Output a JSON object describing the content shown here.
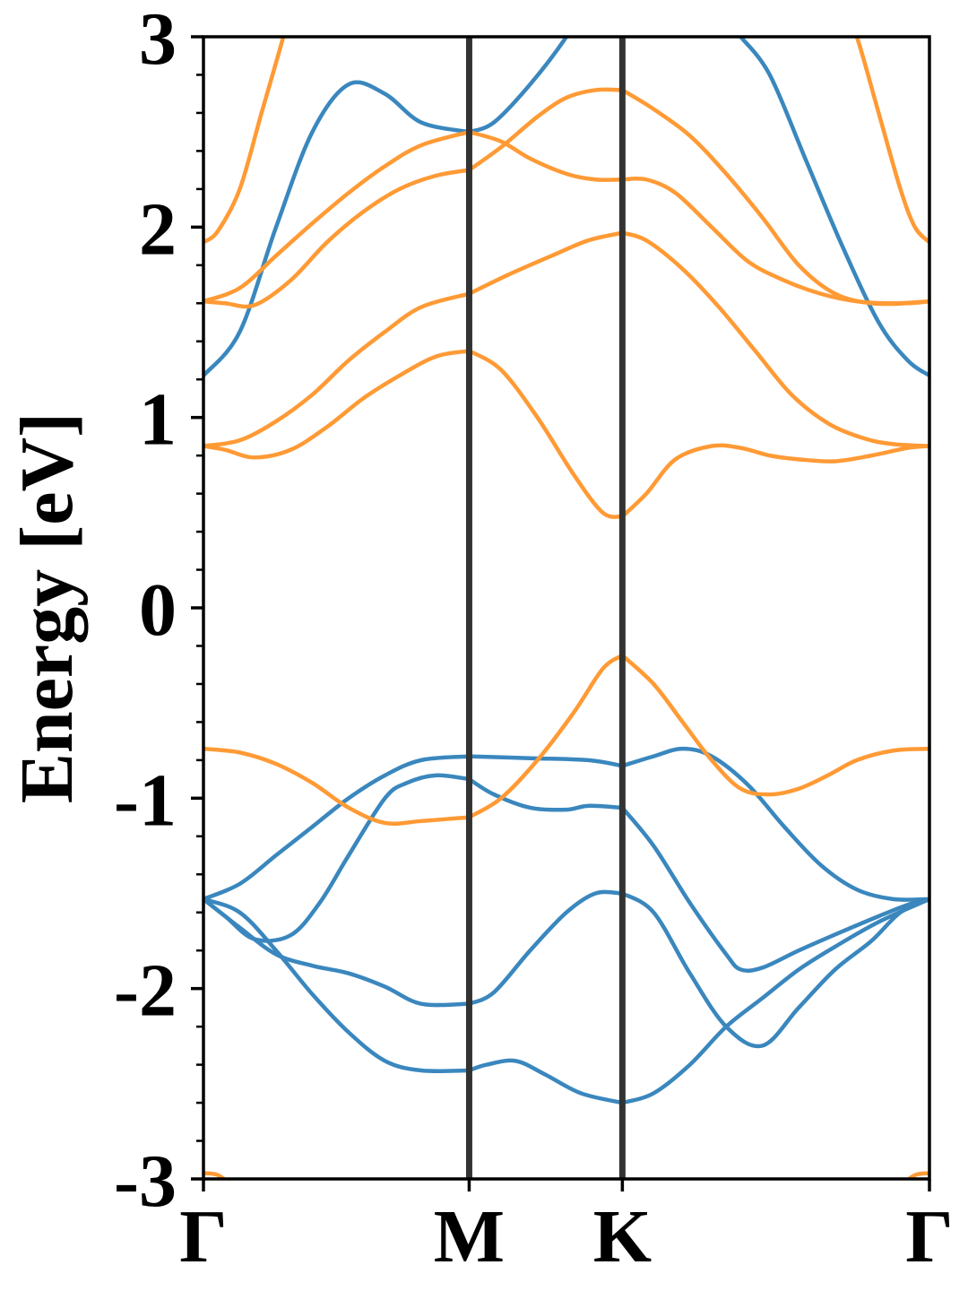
{
  "chart_data": {
    "type": "line",
    "title": "",
    "xlabel": "",
    "ylabel": "Energy [eV]",
    "ylim": [
      -3,
      3
    ],
    "xlim": [
      0,
      1
    ],
    "yticks": [
      {
        "value": 3,
        "label": "3"
      },
      {
        "value": 2,
        "label": "2"
      },
      {
        "value": 1,
        "label": "1"
      },
      {
        "value": 0,
        "label": "0"
      },
      {
        "value": -1,
        "label": "-1"
      },
      {
        "value": -2,
        "label": "-2"
      },
      {
        "value": -3,
        "label": "-3"
      }
    ],
    "yminor_step": 0.2,
    "kpoints": [
      {
        "label": "Γ",
        "x": 0.0
      },
      {
        "label": "M",
        "x": 0.366
      },
      {
        "label": "K",
        "x": 0.577
      },
      {
        "label": "Γ",
        "x": 1.0
      }
    ],
    "high_symmetry_lines": [
      0.366,
      0.577
    ],
    "grid": false,
    "legend": "none",
    "colors": {
      "series_a": "#3a87be",
      "series_b": "#ff9a35",
      "vline": "#333333",
      "axis": "#000000"
    },
    "series": [
      {
        "color": "#3a87be",
        "x": [
          0,
          0.03,
          0.07,
          0.12,
          0.16,
          0.2,
          0.25,
          0.28,
          0.32,
          0.366
        ],
        "y": [
          -1.53,
          -1.62,
          -1.74,
          -1.72,
          -1.55,
          -1.3,
          -1.0,
          -0.92,
          -0.88,
          -0.9
        ]
      },
      {
        "color": "#3a87be",
        "x": [
          0.366,
          0.4,
          0.45,
          0.5,
          0.53,
          0.577
        ],
        "y": [
          -0.9,
          -0.98,
          -1.05,
          -1.06,
          -1.04,
          -1.05
        ]
      },
      {
        "color": "#3a87be",
        "x": [
          0.577,
          0.62,
          0.67,
          0.72,
          0.74,
          0.77,
          0.82,
          0.88,
          0.93,
          0.97,
          1.0
        ],
        "y": [
          -1.05,
          -1.25,
          -1.55,
          -1.82,
          -1.9,
          -1.89,
          -1.8,
          -1.7,
          -1.62,
          -1.56,
          -1.53
        ]
      },
      {
        "color": "#3a87be",
        "x": [
          0,
          0.05,
          0.1,
          0.15,
          0.2,
          0.25,
          0.3,
          0.366
        ],
        "y": [
          -1.53,
          -1.68,
          -1.82,
          -1.88,
          -1.92,
          -1.99,
          -2.08,
          -2.08
        ]
      },
      {
        "color": "#3a87be",
        "x": [
          0.366,
          0.4,
          0.45,
          0.5,
          0.54,
          0.577
        ],
        "y": [
          -2.08,
          -2.02,
          -1.8,
          -1.6,
          -1.5,
          -1.5
        ]
      },
      {
        "color": "#3a87be",
        "x": [
          0.577,
          0.62,
          0.67,
          0.72,
          0.77,
          0.82,
          0.87,
          0.92,
          0.96,
          1.0
        ],
        "y": [
          -1.5,
          -1.6,
          -1.92,
          -2.2,
          -2.3,
          -2.1,
          -1.9,
          -1.75,
          -1.6,
          -1.53
        ]
      },
      {
        "color": "#3a87be",
        "x": [
          0,
          0.05,
          0.1,
          0.15,
          0.2,
          0.25,
          0.3,
          0.366
        ],
        "y": [
          -1.53,
          -1.6,
          -1.8,
          -2.03,
          -2.23,
          -2.38,
          -2.43,
          -2.43
        ]
      },
      {
        "color": "#3a87be",
        "x": [
          0.366,
          0.39,
          0.43,
          0.47,
          0.52,
          0.577
        ],
        "y": [
          -2.43,
          -2.4,
          -2.38,
          -2.45,
          -2.55,
          -2.6
        ]
      },
      {
        "color": "#3a87be",
        "x": [
          0.577,
          0.62,
          0.67,
          0.72,
          0.77,
          0.82,
          0.87,
          0.93,
          1.0
        ],
        "y": [
          -2.6,
          -2.55,
          -2.4,
          -2.2,
          -2.05,
          -1.9,
          -1.78,
          -1.65,
          -1.53
        ]
      },
      {
        "color": "#3a87be",
        "x": [
          0,
          0.05,
          0.1,
          0.15,
          0.2,
          0.25,
          0.3,
          0.366
        ],
        "y": [
          -1.53,
          -1.45,
          -1.3,
          -1.15,
          -1.0,
          -0.88,
          -0.8,
          -0.78
        ]
      },
      {
        "color": "#3a87be",
        "x": [
          0.366,
          0.45,
          0.53,
          0.577
        ],
        "y": [
          -0.78,
          -0.79,
          -0.8,
          -0.83
        ]
      },
      {
        "color": "#3a87be",
        "x": [
          0.577,
          0.62,
          0.66,
          0.7,
          0.75,
          0.8,
          0.85,
          0.9,
          0.95,
          1.0
        ],
        "y": [
          -0.83,
          -0.78,
          -0.74,
          -0.78,
          -0.93,
          -1.15,
          -1.35,
          -1.48,
          -1.53,
          -1.53
        ]
      },
      {
        "color": "#3a87be",
        "x": [
          0,
          0.05,
          0.1,
          0.15,
          0.2,
          0.25,
          0.3,
          0.366
        ],
        "y": [
          1.22,
          1.45,
          2.0,
          2.5,
          2.75,
          2.7,
          2.55,
          2.5
        ]
      },
      {
        "color": "#3a87be",
        "x": [
          0.366,
          0.4,
          0.45,
          0.5,
          0.53
        ],
        "y": [
          2.5,
          2.55,
          2.75,
          3.0,
          3.2
        ]
      },
      {
        "color": "#3a87be",
        "x": [
          0.74,
          0.78,
          0.83,
          0.88,
          0.93,
          0.97,
          1.0
        ],
        "y": [
          3.0,
          2.8,
          2.35,
          1.9,
          1.5,
          1.3,
          1.22
        ]
      },
      {
        "color": "#ff9a35",
        "x": [
          0,
          0.05,
          0.1,
          0.15,
          0.2,
          0.25,
          0.3,
          0.366
        ],
        "y": [
          -0.74,
          -0.76,
          -0.82,
          -0.92,
          -1.05,
          -1.13,
          -1.12,
          -1.1
        ]
      },
      {
        "color": "#ff9a35",
        "x": [
          0.366,
          0.41,
          0.46,
          0.51,
          0.55,
          0.577
        ],
        "y": [
          -1.1,
          -1.0,
          -0.8,
          -0.55,
          -0.32,
          -0.25
        ]
      },
      {
        "color": "#ff9a35",
        "x": [
          0.577,
          0.62,
          0.66,
          0.7,
          0.74,
          0.78,
          0.82,
          0.86,
          0.9,
          0.95,
          1.0
        ],
        "y": [
          -0.25,
          -0.4,
          -0.6,
          -0.8,
          -0.95,
          -0.98,
          -0.95,
          -0.88,
          -0.8,
          -0.75,
          -0.74
        ]
      },
      {
        "color": "#ff9a35",
        "x": [
          0,
          0.03,
          0.07,
          0.12,
          0.17,
          0.22,
          0.27,
          0.32,
          0.366
        ],
        "y": [
          0.85,
          0.83,
          0.79,
          0.83,
          0.95,
          1.1,
          1.22,
          1.32,
          1.35
        ]
      },
      {
        "color": "#ff9a35",
        "x": [
          0.366,
          0.41,
          0.46,
          0.51,
          0.55,
          0.577
        ],
        "y": [
          1.35,
          1.25,
          1.0,
          0.7,
          0.5,
          0.48
        ]
      },
      {
        "color": "#ff9a35",
        "x": [
          0.577,
          0.61,
          0.65,
          0.7,
          0.74,
          0.78,
          0.82,
          0.87,
          0.92,
          0.97,
          1.0
        ],
        "y": [
          0.48,
          0.6,
          0.78,
          0.85,
          0.84,
          0.8,
          0.78,
          0.77,
          0.8,
          0.84,
          0.85
        ]
      },
      {
        "color": "#ff9a35",
        "x": [
          0,
          0.05,
          0.1,
          0.15,
          0.2,
          0.25,
          0.3,
          0.366
        ],
        "y": [
          0.85,
          0.88,
          0.98,
          1.12,
          1.3,
          1.45,
          1.58,
          1.65
        ]
      },
      {
        "color": "#ff9a35",
        "x": [
          0.366,
          0.42,
          0.48,
          0.53,
          0.577
        ],
        "y": [
          1.65,
          1.75,
          1.85,
          1.93,
          1.97
        ]
      },
      {
        "color": "#ff9a35",
        "x": [
          0.577,
          0.61,
          0.66,
          0.71,
          0.76,
          0.81,
          0.86,
          0.91,
          0.95,
          1.0
        ],
        "y": [
          1.97,
          1.93,
          1.78,
          1.58,
          1.35,
          1.12,
          0.97,
          0.89,
          0.86,
          0.85
        ]
      },
      {
        "color": "#ff9a35",
        "x": [
          0,
          0.03,
          0.07,
          0.12,
          0.17,
          0.22,
          0.27,
          0.32,
          0.366
        ],
        "y": [
          1.61,
          1.6,
          1.59,
          1.72,
          1.92,
          2.08,
          2.2,
          2.27,
          2.3
        ]
      },
      {
        "color": "#ff9a35",
        "x": [
          0.366,
          0.41,
          0.46,
          0.5,
          0.54,
          0.577
        ],
        "y": [
          2.3,
          2.42,
          2.58,
          2.68,
          2.72,
          2.72
        ]
      },
      {
        "color": "#ff9a35",
        "x": [
          0.577,
          0.62,
          0.67,
          0.72,
          0.77,
          0.82,
          0.87,
          0.92,
          0.97,
          1.0
        ],
        "y": [
          2.72,
          2.62,
          2.48,
          2.28,
          2.05,
          1.8,
          1.65,
          1.6,
          1.6,
          1.61
        ]
      },
      {
        "color": "#ff9a35",
        "x": [
          0,
          0.05,
          0.1,
          0.15,
          0.2,
          0.25,
          0.3,
          0.366
        ],
        "y": [
          1.61,
          1.68,
          1.85,
          2.02,
          2.18,
          2.32,
          2.43,
          2.5
        ]
      },
      {
        "color": "#ff9a35",
        "x": [
          0.366,
          0.41,
          0.45,
          0.5,
          0.54,
          0.577
        ],
        "y": [
          2.5,
          2.45,
          2.36,
          2.28,
          2.25,
          2.25
        ]
      },
      {
        "color": "#ff9a35",
        "x": [
          0.577,
          0.61,
          0.65,
          0.7,
          0.75,
          0.8,
          0.85,
          0.9,
          0.95,
          1.0
        ],
        "y": [
          2.25,
          2.25,
          2.18,
          2.0,
          1.82,
          1.72,
          1.65,
          1.61,
          1.6,
          1.61
        ]
      },
      {
        "color": "#ff9a35",
        "x": [
          0,
          0.02,
          0.05,
          0.08,
          0.11,
          0.13
        ],
        "y": [
          1.92,
          1.98,
          2.2,
          2.6,
          3.0,
          3.3
        ]
      },
      {
        "color": "#ff9a35",
        "x": [
          0.87,
          0.9,
          0.93,
          0.96,
          0.98,
          1.0
        ],
        "y": [
          3.3,
          3.0,
          2.6,
          2.2,
          2.0,
          1.92
        ]
      },
      {
        "color": "#ff9a35",
        "x": [
          0,
          0.02,
          0.045
        ],
        "y": [
          -2.97,
          -2.98,
          -3.05
        ]
      },
      {
        "color": "#ff9a35",
        "x": [
          0.955,
          0.98,
          1.0
        ],
        "y": [
          -3.05,
          -2.98,
          -2.97
        ]
      }
    ]
  }
}
